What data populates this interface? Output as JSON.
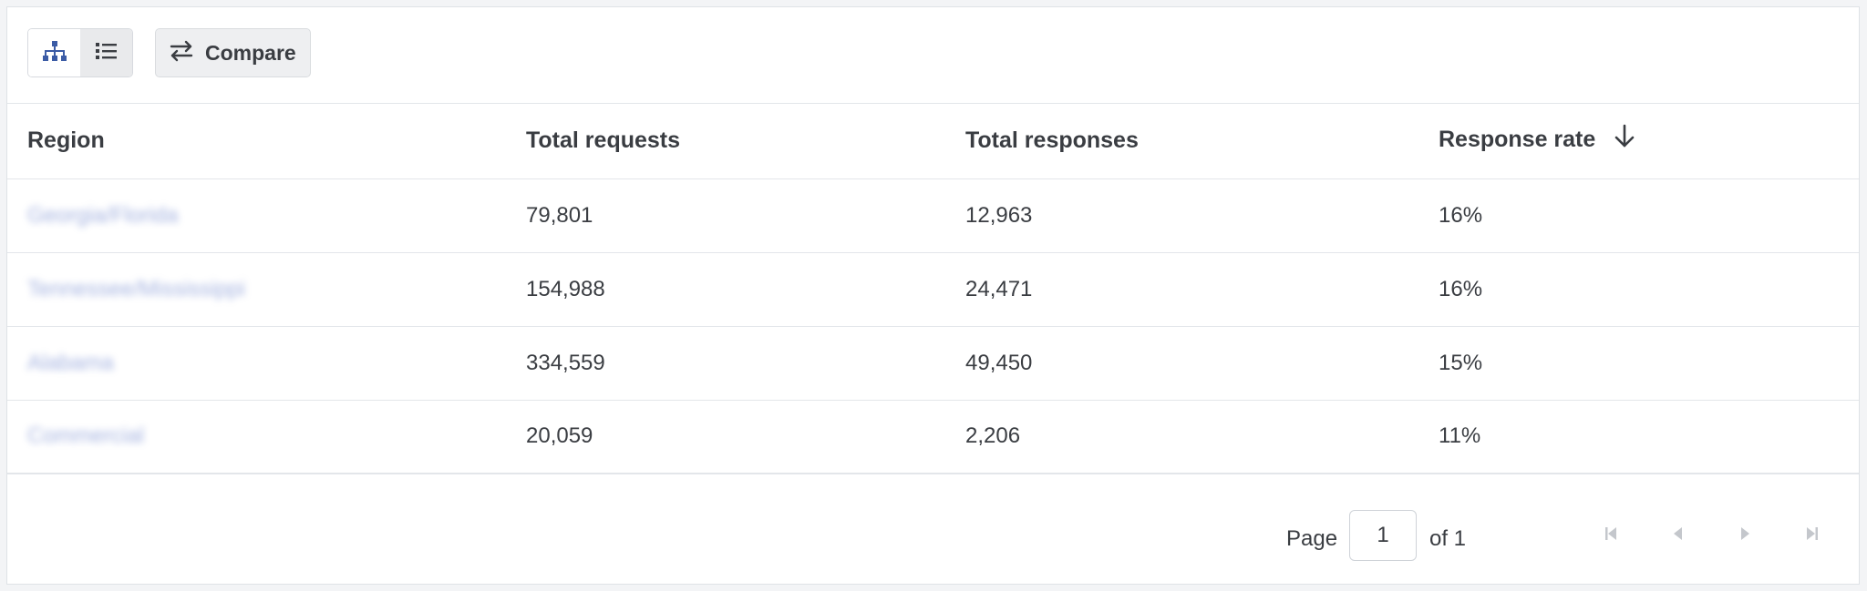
{
  "toolbar": {
    "view_toggle": {
      "options": [
        "hierarchy-view",
        "list-view"
      ],
      "active": "hierarchy-view"
    },
    "compare_label": "Compare"
  },
  "table": {
    "columns": [
      "Region",
      "Total requests",
      "Total responses",
      "Response rate"
    ],
    "sorted_column": "Response rate",
    "sort_direction": "descending",
    "rows": [
      {
        "region": "Georgia/Florida",
        "requests": "79,801",
        "responses": "12,963",
        "rate": "16%"
      },
      {
        "region": "Tennessee/Mississippi",
        "requests": "154,988",
        "responses": "24,471",
        "rate": "16%"
      },
      {
        "region": "Alabama",
        "requests": "334,559",
        "responses": "49,450",
        "rate": "15%"
      },
      {
        "region": "Commercial",
        "requests": "20,059",
        "responses": "2,206",
        "rate": "11%"
      }
    ]
  },
  "pagination": {
    "page_label": "Page",
    "current_page": "1",
    "of_label": "of 1"
  },
  "colors": {
    "accent": "#3b5ba5",
    "region_link": "#5a74c6",
    "text": "#3a3d42",
    "disabled_icon": "#c4c7cc"
  }
}
